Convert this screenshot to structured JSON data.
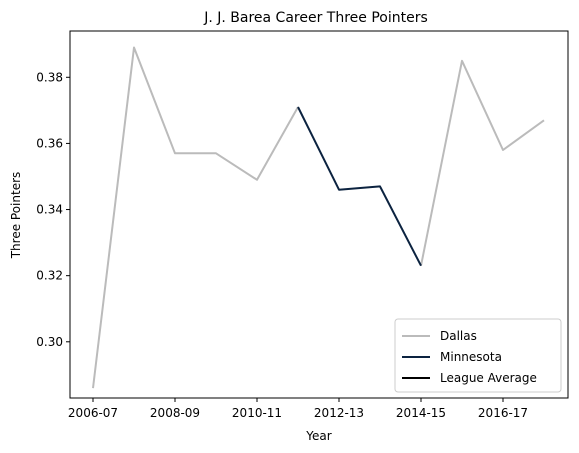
{
  "chart_data": {
    "type": "line",
    "title": "J. J. Barea Career Three Pointers",
    "xlabel": "Year",
    "ylabel": "Three Pointers",
    "x_categories": [
      "2006-07",
      "2007-08",
      "2008-09",
      "2009-10",
      "2010-11",
      "2011-12",
      "2012-13",
      "2013-14",
      "2014-15",
      "2015-16",
      "2016-17",
      "2017-18"
    ],
    "x_tick_labels": [
      "2006-07",
      "2008-09",
      "2010-11",
      "2012-13",
      "2014-15",
      "2016-17"
    ],
    "y_ticks": [
      0.3,
      0.32,
      0.34,
      0.36,
      0.38
    ],
    "y_tick_labels": [
      "0.30",
      "0.32",
      "0.34",
      "0.36",
      "0.38"
    ],
    "ylim": [
      0.283,
      0.394
    ],
    "grid": false,
    "legend_position": "bottom-right",
    "series": [
      {
        "name": "Dallas",
        "color": "#bbbbbb",
        "points": [
          {
            "x": "2006-07",
            "y": 0.286
          },
          {
            "x": "2007-08",
            "y": 0.389
          },
          {
            "x": "2008-09",
            "y": 0.357
          },
          {
            "x": "2009-10",
            "y": 0.357
          },
          {
            "x": "2010-11",
            "y": 0.349
          },
          {
            "x": "2011-12",
            "y": 0.371
          },
          {
            "x": "2012-13",
            "y": null
          },
          {
            "x": "2013-14",
            "y": null
          },
          {
            "x": "2014-15",
            "y": 0.323
          },
          {
            "x": "2015-16",
            "y": 0.385
          },
          {
            "x": "2016-17",
            "y": 0.358
          },
          {
            "x": "2017-18",
            "y": 0.367
          }
        ]
      },
      {
        "name": "Minnesota",
        "color": "#0c2340",
        "points": [
          {
            "x": "2011-12",
            "y": 0.371
          },
          {
            "x": "2012-13",
            "y": 0.346
          },
          {
            "x": "2013-14",
            "y": 0.347
          },
          {
            "x": "2014-15",
            "y": 0.323
          }
        ]
      },
      {
        "name": "League Average",
        "color": "#000000",
        "points": []
      }
    ]
  }
}
